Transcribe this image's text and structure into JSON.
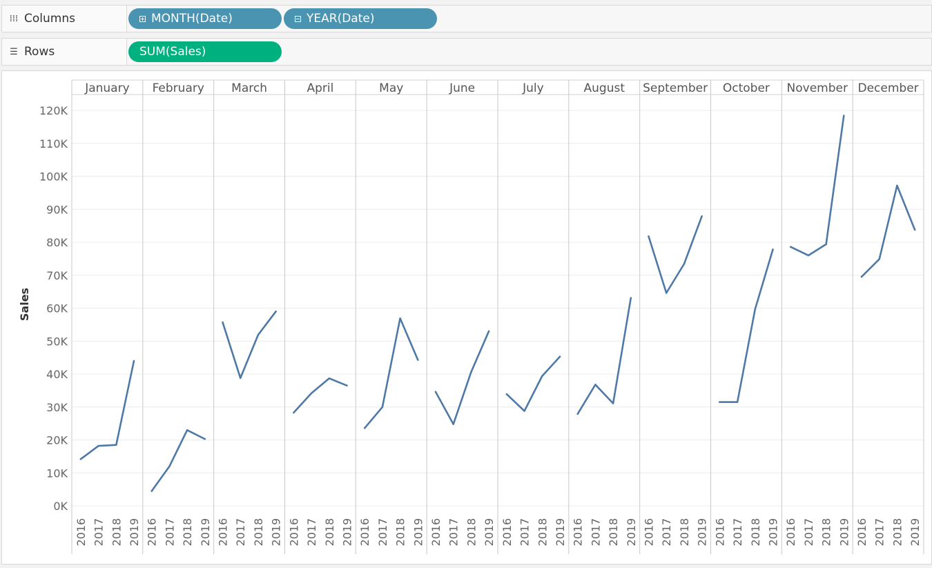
{
  "shelves": {
    "columns": {
      "label": "Columns",
      "icon": "columns-icon",
      "pills": [
        {
          "label": "MONTH(Date)",
          "toggle": "expand"
        },
        {
          "label": "YEAR(Date)",
          "toggle": "collapse"
        }
      ]
    },
    "rows": {
      "label": "Rows",
      "icon": "rows-icon",
      "pills": [
        {
          "label": "SUM(Sales)"
        }
      ]
    }
  },
  "colors": {
    "line": "#4e79a7",
    "pill_dimension": "#4a93b1",
    "pill_measure": "#00b180"
  },
  "chart_data": {
    "type": "line",
    "ylabel": "Sales",
    "ylim": [
      0,
      120000
    ],
    "yticks": [
      "0K",
      "10K",
      "20K",
      "30K",
      "40K",
      "50K",
      "60K",
      "70K",
      "80K",
      "90K",
      "100K",
      "110K",
      "120K"
    ],
    "grid": true,
    "years": [
      "2016",
      "2017",
      "2018",
      "2019"
    ],
    "months": [
      {
        "name": "January",
        "values": [
          14200,
          18200,
          18500,
          44000
        ]
      },
      {
        "name": "February",
        "values": [
          4500,
          12000,
          23000,
          20300
        ]
      },
      {
        "name": "March",
        "values": [
          55700,
          38800,
          51900,
          59000
        ]
      },
      {
        "name": "April",
        "values": [
          28300,
          34200,
          38700,
          36500
        ]
      },
      {
        "name": "May",
        "values": [
          23600,
          30000,
          56900,
          44300
        ]
      },
      {
        "name": "June",
        "values": [
          34600,
          24800,
          40600,
          53000
        ]
      },
      {
        "name": "July",
        "values": [
          33900,
          28800,
          39400,
          45300
        ]
      },
      {
        "name": "August",
        "values": [
          27900,
          36800,
          31100,
          63100
        ]
      },
      {
        "name": "September",
        "values": [
          81800,
          64600,
          73400,
          87900
        ]
      },
      {
        "name": "October",
        "values": [
          31500,
          31500,
          59700,
          77800
        ]
      },
      {
        "name": "November",
        "values": [
          78600,
          76000,
          79400,
          118400
        ]
      },
      {
        "name": "December",
        "values": [
          69500,
          74900,
          97200,
          83800
        ]
      }
    ]
  }
}
